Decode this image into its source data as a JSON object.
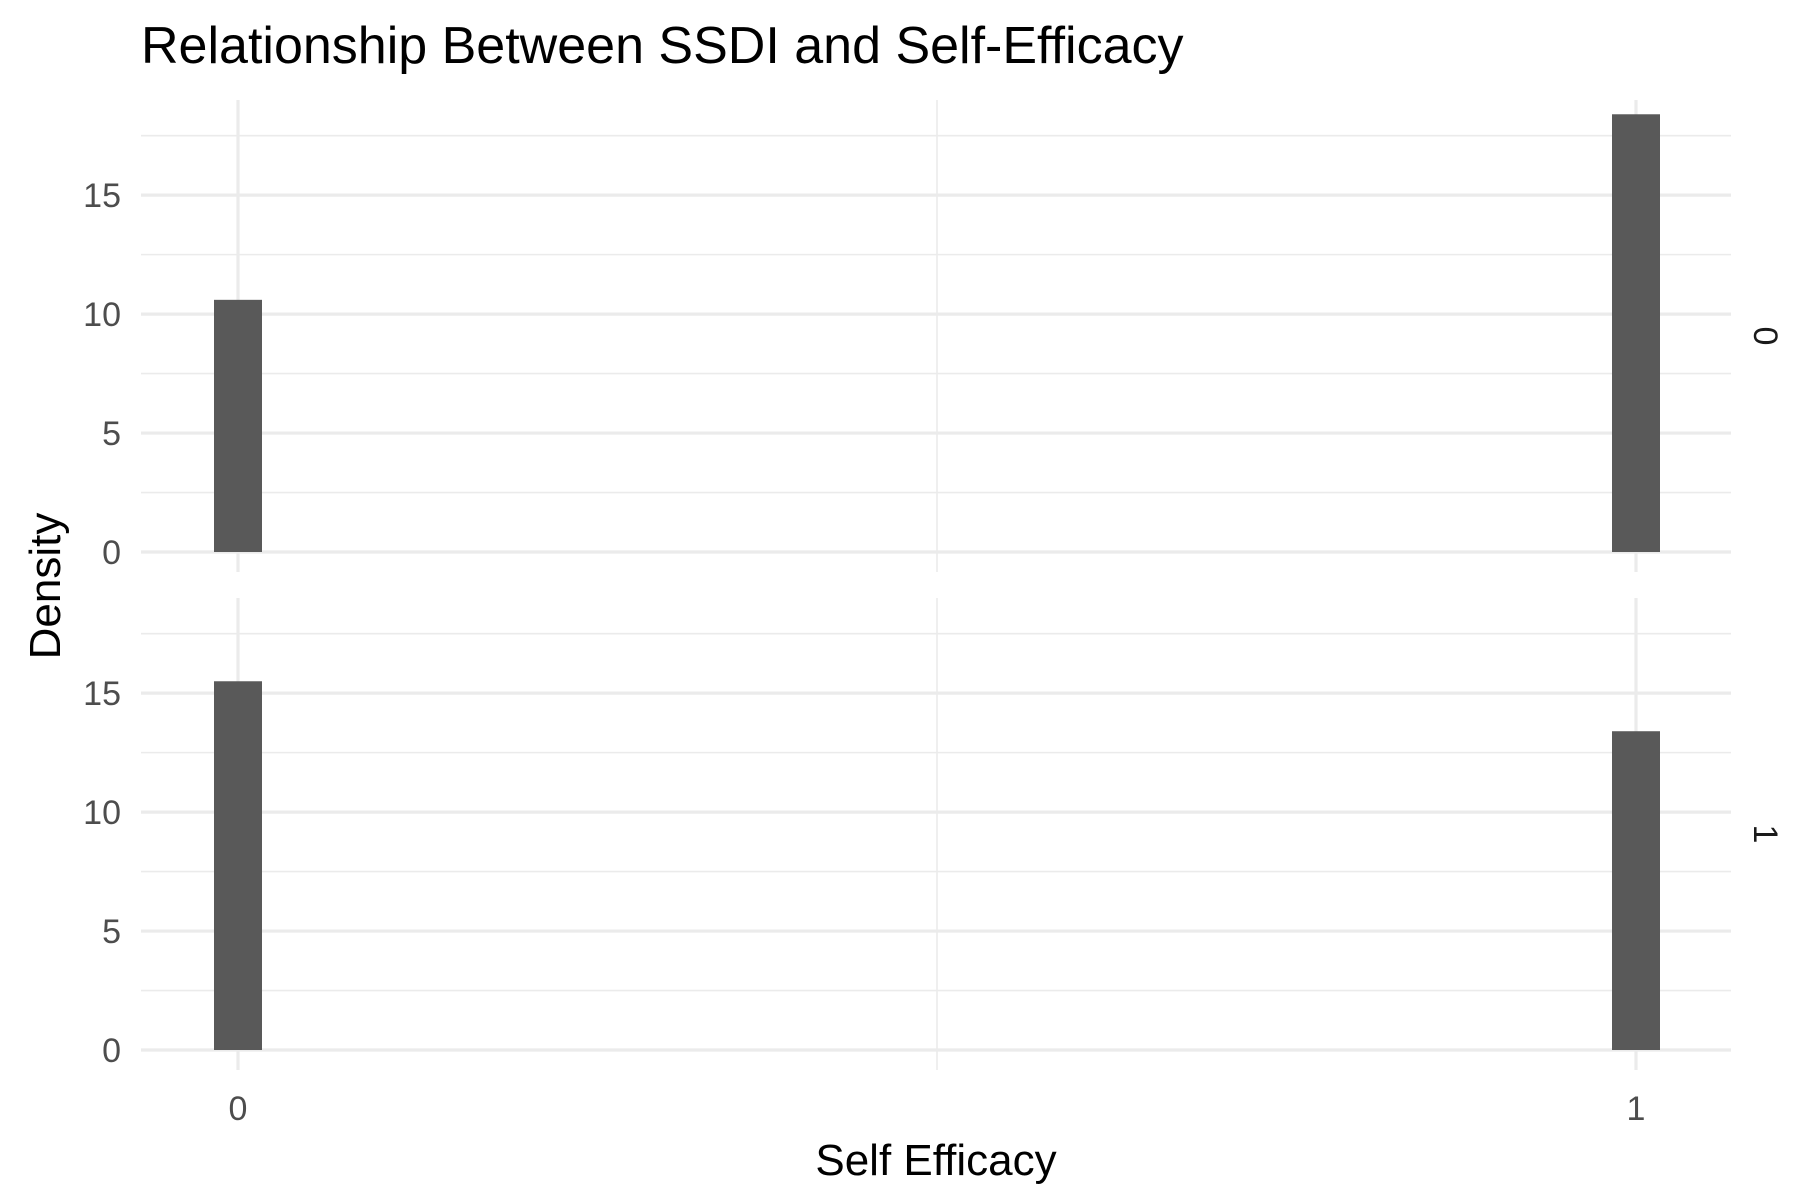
{
  "chart_data": {
    "type": "bar",
    "title": "Relationship Between SSDI and Self-Efficacy",
    "xlabel": "Self Efficacy",
    "ylabel": "Density",
    "x_ticks": [
      0,
      1
    ],
    "y_ticks": [
      0,
      5,
      10,
      15
    ],
    "xlim": [
      -0.07,
      1.07
    ],
    "ylim": [
      0,
      19
    ],
    "grid": true,
    "facet_by": "SSDI",
    "panels": [
      {
        "strip_label": "0",
        "bars": [
          {
            "x": 0,
            "density": 10.6
          },
          {
            "x": 1,
            "density": 18.4
          }
        ]
      },
      {
        "strip_label": "1",
        "bars": [
          {
            "x": 0,
            "density": 15.5
          },
          {
            "x": 1,
            "density": 13.4
          }
        ]
      }
    ],
    "colors": {
      "bar": "#595959",
      "grid": "#ebebeb",
      "background": "#ffffff"
    }
  }
}
